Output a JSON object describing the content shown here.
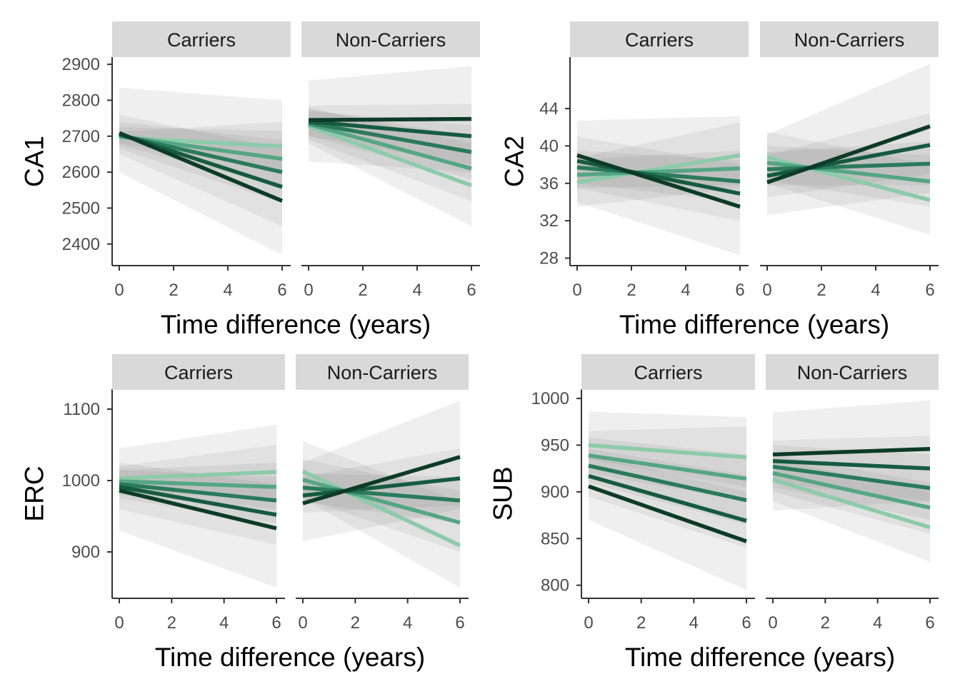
{
  "colors": {
    "strip_bg": "#d9d9d9",
    "ribbon": "#7f7f7f",
    "axis": "#333333",
    "line_ramp": [
      "#8ccbaa",
      "#55a683",
      "#2a7a5c",
      "#155b40",
      "#0d3b2a"
    ]
  },
  "chart_data": [
    {
      "type": "line",
      "ylabel": "CA1",
      "xlabel": "Time difference (years)",
      "xlim": [
        0,
        6
      ],
      "xticks": [
        0,
        2,
        4,
        6
      ],
      "ylim": [
        2340,
        2920
      ],
      "yticks": [
        2400,
        2500,
        2600,
        2700,
        2800,
        2900
      ],
      "panels": [
        {
          "strip": "Carriers",
          "series": [
            {
              "start": 2696,
              "end": 2672,
              "ci_start": [
                2680,
                2712
              ],
              "ci_end": [
                2605,
                2740
              ]
            },
            {
              "start": 2700,
              "end": 2637,
              "ci_start": [
                2675,
                2725
              ],
              "ci_end": [
                2560,
                2715
              ]
            },
            {
              "start": 2703,
              "end": 2600,
              "ci_start": [
                2665,
                2740
              ],
              "ci_end": [
                2515,
                2690
              ]
            },
            {
              "start": 2706,
              "end": 2559,
              "ci_start": [
                2650,
                2760
              ],
              "ci_end": [
                2450,
                2665
              ]
            },
            {
              "start": 2709,
              "end": 2520,
              "ci_start": [
                2600,
                2835
              ],
              "ci_end": [
                2370,
                2800
              ]
            }
          ]
        },
        {
          "strip": "Non-Carriers",
          "series": [
            {
              "start": 2728,
              "end": 2563,
              "ci_start": [
                2680,
                2780
              ],
              "ci_end": [
                2450,
                2680
              ]
            },
            {
              "start": 2733,
              "end": 2610,
              "ci_start": [
                2690,
                2775
              ],
              "ci_end": [
                2520,
                2700
              ]
            },
            {
              "start": 2737,
              "end": 2656,
              "ci_start": [
                2700,
                2770
              ],
              "ci_end": [
                2580,
                2730
              ]
            },
            {
              "start": 2741,
              "end": 2700,
              "ci_start": [
                2700,
                2785
              ],
              "ci_end": [
                2620,
                2790
              ]
            },
            {
              "start": 2745,
              "end": 2748,
              "ci_start": [
                2630,
                2855
              ],
              "ci_end": [
                2600,
                2895
              ]
            }
          ]
        }
      ]
    },
    {
      "type": "line",
      "ylabel": "CA2",
      "xlabel": "Time difference (years)",
      "xlim": [
        0,
        6
      ],
      "xticks": [
        0,
        2,
        4,
        6
      ],
      "ylim": [
        27.2,
        49.5
      ],
      "yticks": [
        28,
        32,
        36,
        40,
        44
      ],
      "panels": [
        {
          "strip": "Carriers",
          "series": [
            {
              "start": 36.1,
              "end": 39.0,
              "ci_start": [
                33.5,
                38.7
              ],
              "ci_end": [
                35.5,
                42.5
              ]
            },
            {
              "start": 36.9,
              "end": 37.6,
              "ci_start": [
                35.5,
                38.5
              ],
              "ci_end": [
                35.8,
                39.5
              ]
            },
            {
              "start": 37.7,
              "end": 36.2,
              "ci_start": [
                36.0,
                39.5
              ],
              "ci_end": [
                34.0,
                38.5
              ]
            },
            {
              "start": 38.4,
              "end": 34.9,
              "ci_start": [
                35.5,
                41.0
              ],
              "ci_end": [
                32.0,
                38.0
              ]
            },
            {
              "start": 39.0,
              "end": 33.5,
              "ci_start": [
                34.0,
                42.7
              ],
              "ci_end": [
                28.3,
                43.2
              ]
            }
          ]
        },
        {
          "strip": "Non-Carriers",
          "series": [
            {
              "start": 38.8,
              "end": 34.2,
              "ci_start": [
                36.0,
                41.5
              ],
              "ci_end": [
                30.5,
                38.0
              ]
            },
            {
              "start": 38.2,
              "end": 36.2,
              "ci_start": [
                36.3,
                40.0
              ],
              "ci_end": [
                33.5,
                39.0
              ]
            },
            {
              "start": 37.5,
              "end": 38.1,
              "ci_start": [
                35.8,
                39.3
              ],
              "ci_end": [
                35.8,
                40.5
              ]
            },
            {
              "start": 36.8,
              "end": 40.1,
              "ci_start": [
                34.5,
                39.0
              ],
              "ci_end": [
                37.0,
                43.5
              ]
            },
            {
              "start": 36.1,
              "end": 42.1,
              "ci_start": [
                32.6,
                41.2
              ],
              "ci_end": [
                35.0,
                48.8
              ]
            }
          ]
        }
      ]
    },
    {
      "type": "line",
      "ylabel": "ERC",
      "xlabel": "Time difference (years)",
      "xlim": [
        0,
        6
      ],
      "xticks": [
        0,
        2,
        4,
        6
      ],
      "ylim": [
        835,
        1128
      ],
      "yticks": [
        900,
        1000,
        1100
      ],
      "panels": [
        {
          "strip": "Carriers",
          "series": [
            {
              "start": 1003,
              "end": 1012,
              "ci_start": [
                985,
                1020
              ],
              "ci_end": [
                975,
                1050
              ]
            },
            {
              "start": 999,
              "end": 991,
              "ci_start": [
                980,
                1015
              ],
              "ci_end": [
                960,
                1025
              ]
            },
            {
              "start": 995,
              "end": 972,
              "ci_start": [
                975,
                1015
              ],
              "ci_end": [
                940,
                1005
              ]
            },
            {
              "start": 991,
              "end": 952,
              "ci_start": [
                960,
                1025
              ],
              "ci_end": [
                910,
                995
              ]
            },
            {
              "start": 986,
              "end": 933,
              "ci_start": [
                930,
                1045
              ],
              "ci_end": [
                850,
                1078
              ]
            }
          ]
        },
        {
          "strip": "Non-Carriers",
          "series": [
            {
              "start": 1013,
              "end": 909,
              "ci_start": [
                975,
                1055
              ],
              "ci_end": [
                850,
                970
              ]
            },
            {
              "start": 1001,
              "end": 941,
              "ci_start": [
                975,
                1030
              ],
              "ci_end": [
                900,
                985
              ]
            },
            {
              "start": 990,
              "end": 972,
              "ci_start": [
                970,
                1010
              ],
              "ci_end": [
                940,
                1005
              ]
            },
            {
              "start": 979,
              "end": 1003,
              "ci_start": [
                955,
                1005
              ],
              "ci_end": [
                965,
                1045
              ]
            },
            {
              "start": 968,
              "end": 1033,
              "ci_start": [
                915,
                1025
              ],
              "ci_end": [
                960,
                1112
              ]
            }
          ]
        }
      ]
    },
    {
      "type": "line",
      "ylabel": "SUB",
      "xlabel": "Time difference (years)",
      "xlim": [
        0,
        6
      ],
      "xticks": [
        0,
        2,
        4,
        6
      ],
      "ylim": [
        786,
        1010
      ],
      "yticks": [
        800,
        850,
        900,
        950,
        1000
      ],
      "panels": [
        {
          "strip": "Carriers",
          "series": [
            {
              "start": 950,
              "end": 937,
              "ci_start": [
                935,
                965
              ],
              "ci_end": [
                905,
                970
              ]
            },
            {
              "start": 939,
              "end": 914,
              "ci_start": [
                920,
                958
              ],
              "ci_end": [
                890,
                940
              ]
            },
            {
              "start": 928,
              "end": 891,
              "ci_start": [
                910,
                946
              ],
              "ci_end": [
                865,
                918
              ]
            },
            {
              "start": 917,
              "end": 869,
              "ci_start": [
                895,
                940
              ],
              "ci_end": [
                840,
                900
              ]
            },
            {
              "start": 906,
              "end": 847,
              "ci_start": [
                870,
                986
              ],
              "ci_end": [
                795,
                980
              ]
            }
          ]
        },
        {
          "strip": "Non-Carriers",
          "series": [
            {
              "start": 913,
              "end": 862,
              "ci_start": [
                890,
                935
              ],
              "ci_end": [
                825,
                900
              ]
            },
            {
              "start": 920,
              "end": 883,
              "ci_start": [
                900,
                940
              ],
              "ci_end": [
                855,
                910
              ]
            },
            {
              "start": 927,
              "end": 904,
              "ci_start": [
                905,
                950
              ],
              "ci_end": [
                870,
                940
              ]
            },
            {
              "start": 933,
              "end": 925,
              "ci_start": [
                910,
                955
              ],
              "ci_end": [
                890,
                960
              ]
            },
            {
              "start": 940,
              "end": 946,
              "ci_start": [
                880,
                985
              ],
              "ci_end": [
                890,
                998
              ]
            }
          ]
        }
      ]
    }
  ]
}
